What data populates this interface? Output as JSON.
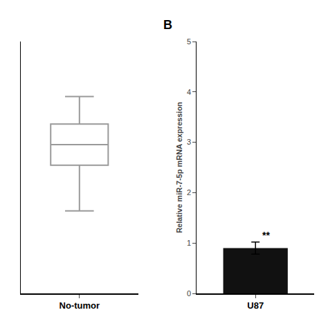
{
  "chart_data": [
    {
      "type": "box",
      "categories": [
        "No-tumor"
      ],
      "color": "#999999",
      "q1": [
        2.8
      ],
      "median": [
        3.25
      ],
      "q3": [
        3.7
      ],
      "whisker_low": [
        1.8
      ],
      "whisker_high": [
        4.3
      ],
      "ylim": [
        0,
        5.5
      ],
      "yticks": [],
      "tick_labels": "x",
      "grid": false
    },
    {
      "type": "bar",
      "title": "B",
      "categories": [
        "U87"
      ],
      "values": [
        0.9
      ],
      "errors": [
        0.12
      ],
      "color": "#111111",
      "ylabel": "Relative miR-7-5p mRNA expression",
      "ylim": [
        0,
        5
      ],
      "yticks": [
        0,
        1,
        2,
        3,
        4,
        5
      ],
      "annotation": "**",
      "grid": false
    }
  ]
}
